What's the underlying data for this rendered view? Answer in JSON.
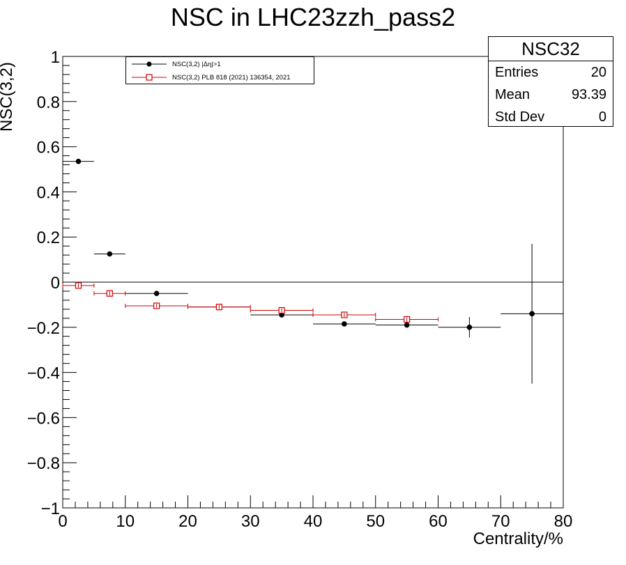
{
  "chart_data": {
    "type": "scatter",
    "title": "NSC in LHC23zzh_pass2",
    "xlabel": "Centrality/%",
    "ylabel": "NSC(3,2)",
    "xlim": [
      0,
      80
    ],
    "ylim": [
      -1,
      1
    ],
    "xticks": [
      "0",
      "10",
      "20",
      "30",
      "40",
      "50",
      "60",
      "70",
      "80"
    ],
    "yticks": [
      "1",
      "0.8",
      "0.6",
      "0.4",
      "0.2",
      "0",
      "−0.2",
      "−0.4",
      "−0.6",
      "−0.8",
      "−1"
    ],
    "zero_line": true,
    "grid": false,
    "series": [
      {
        "name": "NSC(3,2) |Δη|>1",
        "color": "#000000",
        "marker": "filled-circle",
        "points": [
          {
            "x": 2.5,
            "xerr": 2.5,
            "y": 0.535,
            "yerr": 0.0
          },
          {
            "x": 7.5,
            "xerr": 2.5,
            "y": 0.125,
            "yerr": 0.0
          },
          {
            "x": 15,
            "xerr": 5,
            "y": -0.05,
            "yerr": 0.0
          },
          {
            "x": 25,
            "xerr": 5,
            "y": -0.11,
            "yerr": 0.0
          },
          {
            "x": 35,
            "xerr": 5,
            "y": -0.145,
            "yerr": 0.0
          },
          {
            "x": 45,
            "xerr": 5,
            "y": -0.185,
            "yerr": 0.0
          },
          {
            "x": 55,
            "xerr": 5,
            "y": -0.19,
            "yerr": 0.0
          },
          {
            "x": 65,
            "xerr": 5,
            "y": -0.2,
            "yerr": 0.045
          },
          {
            "x": 75,
            "xerr": 5,
            "y": -0.14,
            "yerr": 0.31
          }
        ]
      },
      {
        "name": "NSC(3,2) PLB 818 (2021) 136354, 2021",
        "color": "#cc0000",
        "marker": "open-square",
        "points": [
          {
            "x": 2.5,
            "xerr": 2.5,
            "y": -0.015,
            "yerr": 0.01
          },
          {
            "x": 7.5,
            "xerr": 2.5,
            "y": -0.05,
            "yerr": 0.01
          },
          {
            "x": 15,
            "xerr": 5,
            "y": -0.105,
            "yerr": 0.01
          },
          {
            "x": 25,
            "xerr": 5,
            "y": -0.11,
            "yerr": 0.01
          },
          {
            "x": 35,
            "xerr": 5,
            "y": -0.125,
            "yerr": 0.01
          },
          {
            "x": 45,
            "xerr": 5,
            "y": -0.145,
            "yerr": 0.01
          },
          {
            "x": 55,
            "xerr": 5,
            "y": -0.165,
            "yerr": 0.01
          }
        ]
      }
    ],
    "legend": {
      "placement": "top-left"
    },
    "stats": {
      "title": "NSC32",
      "rows": [
        {
          "label": "Entries",
          "value": "20"
        },
        {
          "label": "Mean",
          "value": "93.39"
        },
        {
          "label": "Std Dev",
          "value": "0"
        }
      ]
    }
  }
}
